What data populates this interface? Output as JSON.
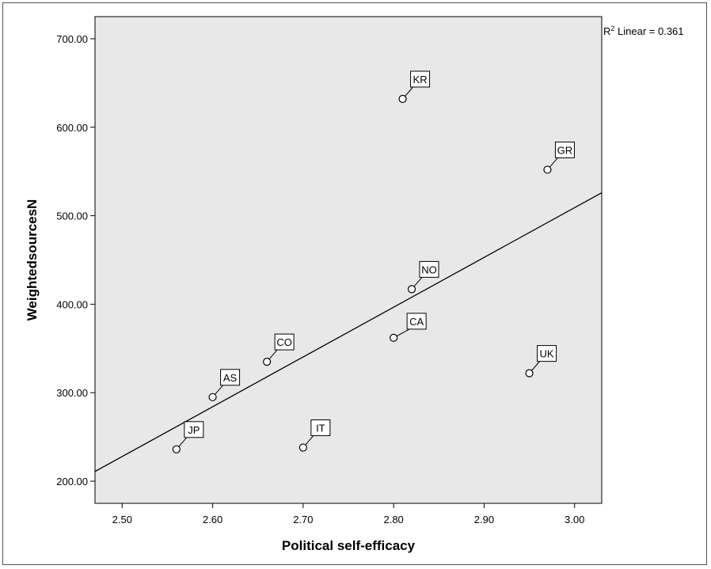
{
  "colors": {
    "plot_bg": "#e8e8e8",
    "ink": "#000000",
    "marker_fill": "#ffffff",
    "label_box_bg": "#ffffff"
  },
  "r2": {
    "prefix": "R",
    "sup": "2",
    "text": " Linear = 0.361"
  },
  "chart_data": {
    "type": "scatter",
    "xlabel": "Political self-efficacy",
    "ylabel": "WeightedsourcesN",
    "xlim": [
      2.47,
      3.03
    ],
    "ylim": [
      175,
      725
    ],
    "xticks": [
      "2.50",
      "2.60",
      "2.70",
      "2.80",
      "2.90",
      "3.00"
    ],
    "xtick_values": [
      2.5,
      2.6,
      2.7,
      2.8,
      2.9,
      3.0
    ],
    "yticks": [
      "200.00",
      "300.00",
      "400.00",
      "500.00",
      "600.00",
      "700.00"
    ],
    "ytick_values": [
      200,
      300,
      400,
      500,
      600,
      700
    ],
    "grid": false,
    "points": [
      {
        "label": "KR",
        "x": 2.81,
        "y": 632
      },
      {
        "label": "GR",
        "x": 2.97,
        "y": 552
      },
      {
        "label": "NO",
        "x": 2.82,
        "y": 417
      },
      {
        "label": "CA",
        "x": 2.8,
        "y": 362
      },
      {
        "label": "CO",
        "x": 2.66,
        "y": 335
      },
      {
        "label": "UK",
        "x": 2.95,
        "y": 322
      },
      {
        "label": "AS",
        "x": 2.6,
        "y": 295
      },
      {
        "label": "JP",
        "x": 2.56,
        "y": 236
      },
      {
        "label": "IT",
        "x": 2.7,
        "y": 238
      }
    ],
    "fit_line": {
      "type": "linear",
      "points": [
        [
          2.47,
          211
        ],
        [
          3.03,
          526
        ]
      ]
    }
  }
}
